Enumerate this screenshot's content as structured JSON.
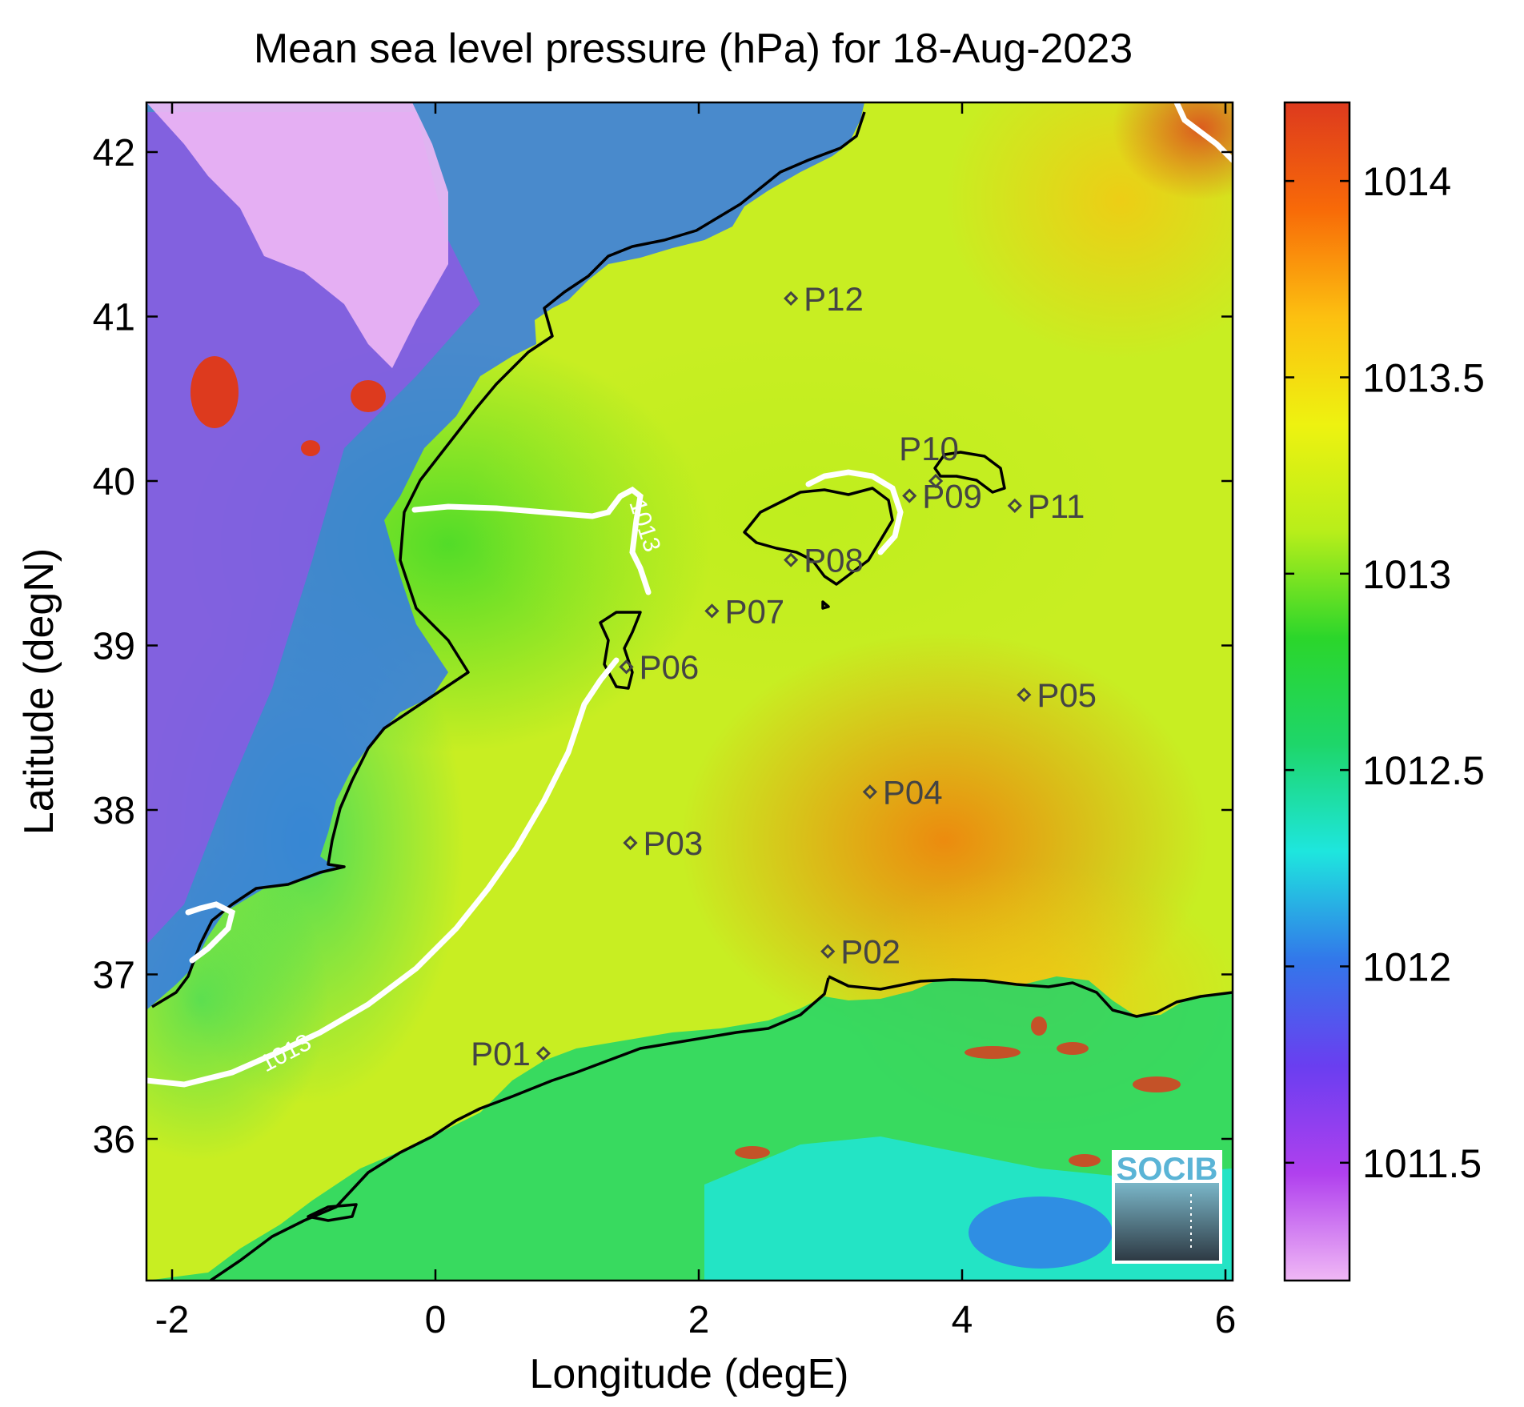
{
  "chart_data": {
    "type": "heatmap",
    "title": "Mean sea level pressure (hPa) for 18-Aug-2023",
    "xlabel": "Longitude (degE)",
    "ylabel": "Latitude (degN)",
    "xlim": [
      -2.2,
      6.05
    ],
    "ylim": [
      35.25,
      42.15
    ],
    "x_ticks": [
      -2,
      0,
      2,
      4,
      6
    ],
    "y_ticks": [
      36,
      37,
      38,
      39,
      40,
      41,
      42
    ],
    "colorbar": {
      "range": [
        1011.2,
        1014.2
      ],
      "ticks": [
        1011.5,
        1012,
        1012.5,
        1013,
        1013.5,
        1014
      ],
      "tick_labels": [
        "1011.5",
        "1012",
        "1012.5",
        "1013",
        "1013.5",
        "1014"
      ],
      "colors": [
        "#f0b8f5",
        "#b040ee",
        "#6a3ef0",
        "#3278ea",
        "#1ee6de",
        "#1ed66a",
        "#2bd62b",
        "#b8ee1a",
        "#eef210",
        "#fcc010",
        "#f86a08",
        "#dd3a1e"
      ]
    },
    "contour": {
      "level": 1013,
      "label": "1013",
      "color": "#ffffff"
    },
    "stations": [
      {
        "name": "P01",
        "lon": 0.82,
        "lat": 36.52
      },
      {
        "name": "P02",
        "lon": 2.98,
        "lat": 37.14
      },
      {
        "name": "P03",
        "lon": 1.48,
        "lat": 37.8
      },
      {
        "name": "P04",
        "lon": 3.3,
        "lat": 38.11
      },
      {
        "name": "P05",
        "lon": 4.47,
        "lat": 38.7
      },
      {
        "name": "P06",
        "lon": 1.45,
        "lat": 38.87
      },
      {
        "name": "P07",
        "lon": 2.1,
        "lat": 39.21
      },
      {
        "name": "P08",
        "lon": 2.7,
        "lat": 39.52
      },
      {
        "name": "P09",
        "lon": 3.6,
        "lat": 39.91
      },
      {
        "name": "P10",
        "lon": 3.8,
        "lat": 40.0
      },
      {
        "name": "P11",
        "lon": 4.4,
        "lat": 39.85
      },
      {
        "name": "P12",
        "lon": 2.7,
        "lat": 41.11
      }
    ]
  },
  "logo": {
    "text": "SOCIB"
  }
}
